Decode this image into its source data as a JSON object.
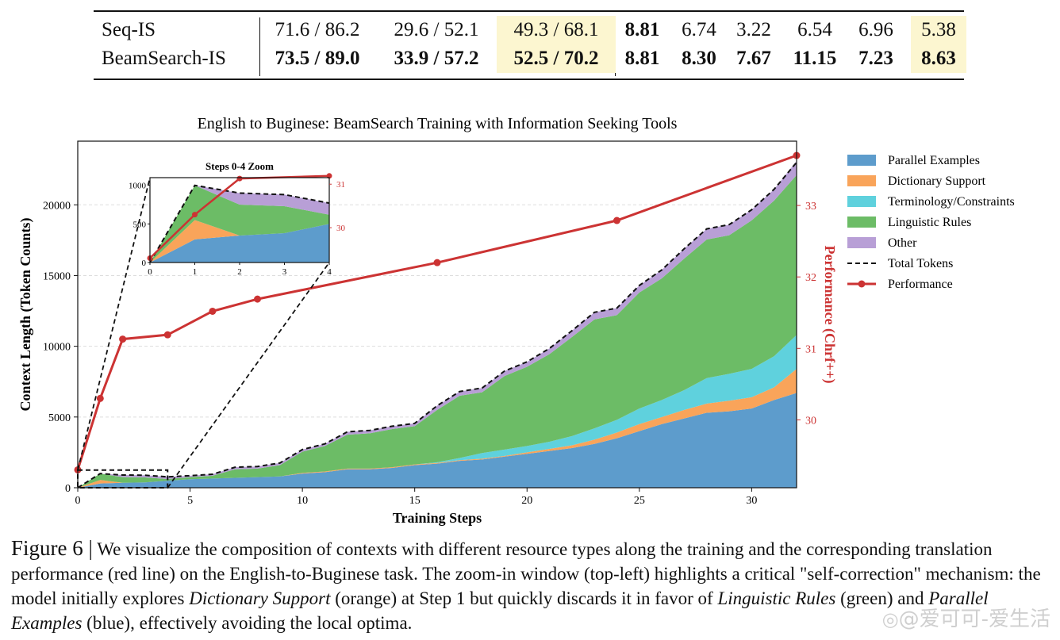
{
  "table": {
    "rows": [
      {
        "label": "Seq-IS",
        "cells": [
          "71.6 / 86.2",
          "29.6 / 52.1",
          "49.3 / 68.1",
          "8.81",
          "6.74",
          "3.22",
          "6.54",
          "6.96",
          "5.38"
        ],
        "bold": [
          false,
          false,
          false,
          true,
          false,
          false,
          false,
          false,
          false
        ]
      },
      {
        "label": "BeamSearch-IS",
        "cells": [
          "73.5 / 89.0",
          "33.9 / 57.2",
          "52.5 / 70.2",
          "8.81",
          "8.30",
          "7.67",
          "11.15",
          "7.23",
          "8.63"
        ],
        "bold": [
          true,
          true,
          true,
          true,
          true,
          true,
          true,
          true,
          true
        ]
      }
    ],
    "highlight_color": "#fcf6d0"
  },
  "chart_data": {
    "type": "area",
    "title": "English to Buginese: BeamSearch Training with Information Seeking Tools",
    "xlabel": "Training Steps",
    "ylabel": "Context Length (Token Counts)",
    "y2label": "Performance (Chrf++)",
    "xlim": [
      0,
      32
    ],
    "ylim": [
      0,
      24500
    ],
    "y2lim": [
      29.05,
      33.9
    ],
    "xticks": [
      0,
      5,
      10,
      15,
      20,
      25,
      30
    ],
    "yticks": [
      0,
      5000,
      10000,
      15000,
      20000
    ],
    "y2ticks": [
      30,
      31,
      32,
      33
    ],
    "legend_position": "right",
    "x": [
      0,
      1,
      2,
      3,
      4,
      5,
      6,
      7,
      8,
      9,
      10,
      11,
      12,
      13,
      14,
      15,
      16,
      17,
      18,
      19,
      20,
      21,
      22,
      23,
      24,
      25,
      26,
      27,
      28,
      29,
      30,
      31,
      32
    ],
    "series": [
      {
        "name": "Parallel Examples",
        "color": "#5d9ccc",
        "values": [
          0,
          300,
          350,
          380,
          500,
          600,
          650,
          700,
          750,
          800,
          1000,
          1100,
          1300,
          1300,
          1400,
          1600,
          1700,
          1900,
          2000,
          2200,
          2400,
          2600,
          2800,
          3100,
          3500,
          4000,
          4500,
          4900,
          5300,
          5400,
          5600,
          6200,
          6700
        ]
      },
      {
        "name": "Dictionary Support",
        "color": "#f9a45a",
        "values": [
          0,
          250,
          0,
          0,
          0,
          0,
          0,
          0,
          0,
          0,
          50,
          50,
          50,
          50,
          50,
          50,
          50,
          50,
          50,
          50,
          100,
          150,
          200,
          300,
          400,
          500,
          500,
          600,
          650,
          750,
          800,
          900,
          1700
        ]
      },
      {
        "name": "Terminology/Constraints",
        "color": "#5fd1dd",
        "values": [
          0,
          0,
          0,
          0,
          0,
          0,
          0,
          0,
          0,
          0,
          0,
          0,
          0,
          0,
          0,
          0,
          50,
          150,
          400,
          450,
          450,
          500,
          650,
          800,
          900,
          1100,
          1200,
          1400,
          1800,
          1900,
          2000,
          2200,
          2400
        ]
      },
      {
        "name": "Linguistic Rules",
        "color": "#6cbc66",
        "values": [
          0,
          450,
          400,
          350,
          120,
          150,
          200,
          600,
          600,
          800,
          1500,
          1800,
          2400,
          2500,
          2700,
          2700,
          3700,
          4400,
          4300,
          5200,
          5600,
          6200,
          7000,
          7700,
          7400,
          8200,
          8600,
          9300,
          9800,
          9800,
          10500,
          11000,
          11300
        ]
      },
      {
        "name": "Other",
        "color": "#b89fd6",
        "values": [
          0,
          0,
          150,
          150,
          150,
          100,
          100,
          150,
          150,
          150,
          150,
          150,
          200,
          200,
          200,
          200,
          300,
          300,
          300,
          350,
          350,
          400,
          450,
          500,
          500,
          500,
          600,
          700,
          750,
          750,
          750,
          800,
          1000
        ]
      }
    ],
    "total_tokens": {
      "name": "Total Tokens",
      "style": "dashed",
      "color": "#111111",
      "values": [
        0,
        1000,
        900,
        880,
        770,
        850,
        950,
        1450,
        1500,
        1750,
        2700,
        3100,
        3950,
        4050,
        4350,
        4550,
        5800,
        6800,
        7050,
        8250,
        8900,
        9850,
        11100,
        12400,
        12700,
        14300,
        15400,
        16900,
        18300,
        18600,
        19650,
        21100,
        23000
      ]
    },
    "performance": {
      "name": "Performance",
      "color": "#cc3333",
      "x": [
        0,
        1,
        2,
        4,
        6,
        8,
        16,
        24,
        32
      ],
      "values": [
        29.3,
        30.3,
        31.13,
        31.19,
        31.52,
        31.69,
        32.2,
        32.79,
        33.7
      ]
    },
    "inset": {
      "title": "Steps 0-4 Zoom",
      "xlim": [
        0,
        4
      ],
      "ylim": [
        0,
        1100
      ],
      "y2lim": [
        29.2,
        31.15
      ],
      "xticks": [
        0,
        1,
        2,
        3,
        4
      ],
      "yticks": [
        0,
        500,
        1000
      ],
      "y2ticks": [
        30,
        31
      ],
      "position": "top-left"
    }
  },
  "caption": {
    "figure_label": "Figure 6 |",
    "text_1": " We visualize the composition of contexts with different resource types along the training and the corresponding translation performance (red line) on the English-to-Buginese task. The zoom-in window (top-left) highlights a critical \"self-correction\" mechanism: the model initially explores ",
    "italic_1": "Dictionary Support",
    "text_2": " (orange) at Step 1 but quickly discards it in favor of ",
    "italic_2": "Linguistic Rules",
    "text_3": " (green) and ",
    "italic_3": "Parallel Examples",
    "text_4": " (blue), effectively avoiding the local optima."
  },
  "watermark": "@爱可可-爱生活"
}
